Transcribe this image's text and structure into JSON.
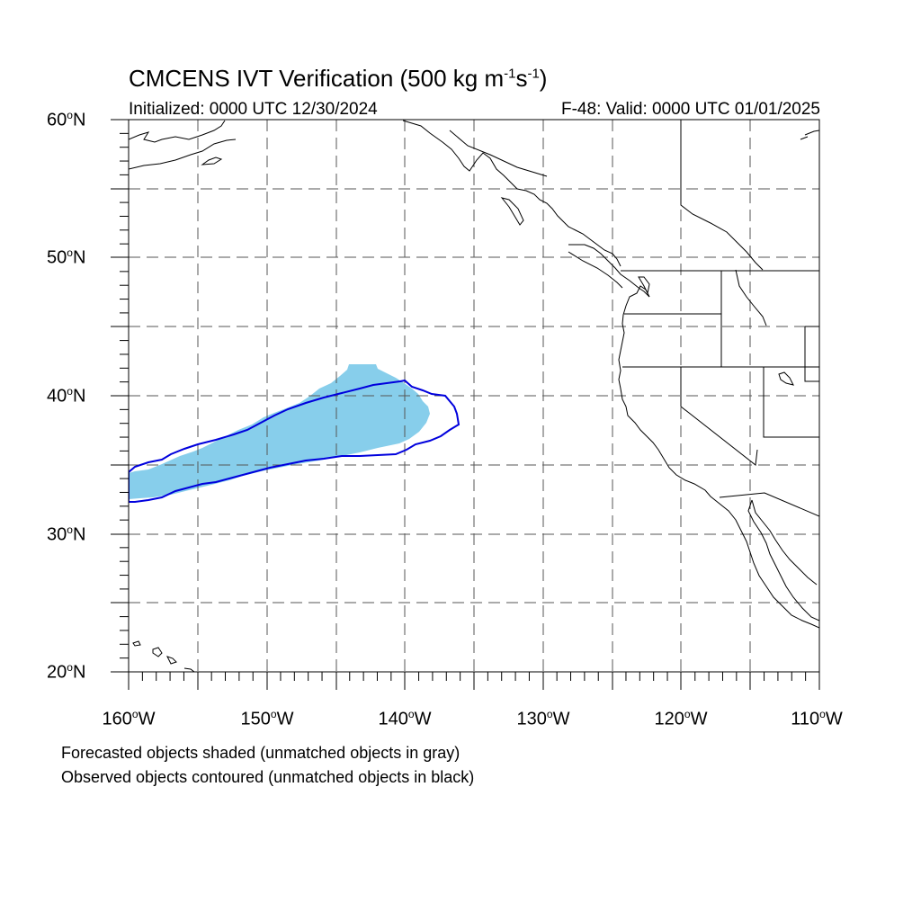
{
  "title": {
    "main": "CMCENS IVT Verification (500 kg m",
    "exp1": "-1",
    "mid": "s",
    "exp2": "-1",
    "close": ")"
  },
  "subtitle_left": "Initialized: 0000 UTC 12/30/2024",
  "subtitle_right": "F-48: Valid: 0000 UTC 01/01/2025",
  "lat_labels": [
    {
      "num": "60",
      "deg": "o",
      "hem": "N"
    },
    {
      "num": "50",
      "deg": "o",
      "hem": "N"
    },
    {
      "num": "40",
      "deg": "o",
      "hem": "N"
    },
    {
      "num": "30",
      "deg": "o",
      "hem": "N"
    },
    {
      "num": "20",
      "deg": "o",
      "hem": "N"
    }
  ],
  "lon_labels": [
    {
      "num": "160",
      "deg": "o",
      "hem": "W"
    },
    {
      "num": "150",
      "deg": "o",
      "hem": "W"
    },
    {
      "num": "140",
      "deg": "o",
      "hem": "W"
    },
    {
      "num": "130",
      "deg": "o",
      "hem": "W"
    },
    {
      "num": "120",
      "deg": "o",
      "hem": "W"
    },
    {
      "num": "110",
      "deg": "o",
      "hem": "W"
    }
  ],
  "footer": {
    "line1": "Forecasted objects shaded (unmatched objects in gray)",
    "line2": "Observed objects contoured (unmatched objects in black)"
  },
  "map": {
    "lon_range": [
      -160,
      -110
    ],
    "lat_range": [
      20,
      60
    ],
    "forecast_fill_color": "#87ceeb",
    "observed_contour_color": "#0000dd",
    "coastline_color": "#000000",
    "grid_color": "#555555"
  }
}
